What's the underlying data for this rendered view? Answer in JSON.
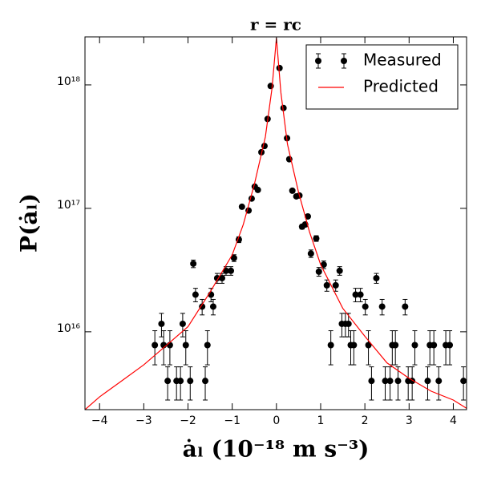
{
  "chart_data": {
    "type": "scatter",
    "title": "r = rc",
    "x_label": "ȧₗ (10⁻¹⁸ m s⁻³)",
    "y_label": "P(ȧₗ)",
    "xlim": [
      -4.33,
      4.3
    ],
    "ylim": [
      2340000000000000.0,
      2.45e+18
    ],
    "yscale": "log",
    "xticks": [
      {
        "value": -4,
        "label": "−4"
      },
      {
        "value": -3,
        "label": "−3"
      },
      {
        "value": -2,
        "label": "−2"
      },
      {
        "value": -1,
        "label": "−1"
      },
      0,
      1,
      2,
      3,
      4
    ],
    "yticks": [
      {
        "value": 1e+16,
        "label": "10¹⁶"
      },
      {
        "value": 1e+17,
        "label": "10¹⁷"
      },
      {
        "value": 1e+18,
        "label": "10¹⁸"
      }
    ],
    "legend": "upper right",
    "series": [
      {
        "name": "Measured",
        "type": "errorbar",
        "color": "#000000",
        "x": [
          -2.75,
          -2.6,
          -2.55,
          -2.46,
          -2.41,
          -2.26,
          -2.17,
          -2.12,
          -2.05,
          -1.95,
          -1.88,
          -1.83,
          -1.68,
          -1.61,
          -1.56,
          -1.48,
          -1.43,
          -1.34,
          -1.23,
          -1.14,
          -1.03,
          -0.96,
          -0.85,
          -0.78,
          -0.63,
          -0.56,
          -0.49,
          -0.42,
          -0.34,
          -0.27,
          -0.2,
          -0.13,
          0.07,
          0.16,
          0.24,
          0.29,
          0.36,
          0.45,
          0.52,
          0.58,
          0.65,
          0.71,
          0.78,
          0.9,
          0.96,
          1.07,
          1.14,
          1.23,
          1.34,
          1.43,
          1.48,
          1.56,
          1.63,
          1.68,
          1.75,
          1.79,
          1.9,
          2.01,
          2.08,
          2.15,
          2.26,
          2.39,
          2.46,
          2.57,
          2.62,
          2.69,
          2.75,
          2.91,
          2.98,
          3.07,
          3.13,
          3.42,
          3.47,
          3.56,
          3.67,
          3.83,
          3.92,
          4.23
        ],
        "values": [
          7800000000000000.0,
          1.16e+16,
          7800000000000000.0,
          4000000000000000.0,
          7800000000000000.0,
          4000000000000000.0,
          4000000000000000.0,
          1.16e+16,
          7800000000000000.0,
          4000000000000000.0,
          3.56e+16,
          2e+16,
          1.6e+16,
          4000000000000000.0,
          7800000000000000.0,
          2e+16,
          1.6e+16,
          2.72e+16,
          2.72e+16,
          3.12e+16,
          3.12e+16,
          3.96e+16,
          5.58e+16,
          1.03e+17,
          9.6e+16,
          1.2e+17,
          1.5e+17,
          1.41e+17,
          2.85e+17,
          3.2e+17,
          5.3e+17,
          9.8e+17,
          1.37e+18,
          6.5e+17,
          3.7e+17,
          2.5e+17,
          1.39e+17,
          1.25e+17,
          1.27e+17,
          7.1e+16,
          7.4e+16,
          8.6e+16,
          4.3e+16,
          5.7e+16,
          3.07e+16,
          3.5e+16,
          2.38e+16,
          7800000000000000.0,
          2.38e+16,
          3.12e+16,
          1.16e+16,
          1.16e+16,
          1.16e+16,
          7800000000000000.0,
          7800000000000000.0,
          2e+16,
          2e+16,
          1.6e+16,
          7800000000000000.0,
          4000000000000000.0,
          2.72e+16,
          1.6e+16,
          4000000000000000.0,
          4000000000000000.0,
          7800000000000000.0,
          7800000000000000.0,
          4000000000000000.0,
          1.6e+16,
          4000000000000000.0,
          4000000000000000.0,
          7800000000000000.0,
          4000000000000000.0,
          7800000000000000.0,
          7800000000000000.0,
          4000000000000000.0,
          7800000000000000.0,
          7800000000000000.0,
          4000000000000000.0
        ],
        "errors": [
          2400000000000000.0,
          2500000000000000.0,
          2400000000000000.0,
          1200000000000000.0,
          2400000000000000.0,
          1200000000000000.0,
          1200000000000000.0,
          2500000000000000.0,
          2400000000000000.0,
          1200000000000000.0,
          2500000000000000.0,
          2500000000000000.0,
          2300000000000000.0,
          1200000000000000.0,
          2400000000000000.0,
          2500000000000000.0,
          2300000000000000.0,
          2500000000000000.0,
          2500000000000000.0,
          2500000000000000.0,
          2500000000000000.0,
          2500000000000000.0,
          3000000000000000.0,
          3000000000000000.0,
          3000000000000000.0,
          3000000000000000.0,
          3000000000000000.0,
          3000000000000000.0,
          3000000000000000.0,
          3000000000000000.0,
          3000000000000000.0,
          3000000000000000.0,
          3000000000000000.0,
          3000000000000000.0,
          3000000000000000.0,
          3000000000000000.0,
          3000000000000000.0,
          3000000000000000.0,
          3000000000000000.0,
          3000000000000000.0,
          3000000000000000.0,
          3000000000000000.0,
          3000000000000000.0,
          3000000000000000.0,
          2500000000000000.0,
          2500000000000000.0,
          2500000000000000.0,
          2400000000000000.0,
          2500000000000000.0,
          2500000000000000.0,
          2500000000000000.0,
          2500000000000000.0,
          2500000000000000.0,
          2400000000000000.0,
          2400000000000000.0,
          2500000000000000.0,
          2500000000000000.0,
          2300000000000000.0,
          2400000000000000.0,
          1200000000000000.0,
          2500000000000000.0,
          2300000000000000.0,
          1200000000000000.0,
          1200000000000000.0,
          2400000000000000.0,
          2400000000000000.0,
          1200000000000000.0,
          2300000000000000.0,
          1200000000000000.0,
          1200000000000000.0,
          2400000000000000.0,
          1200000000000000.0,
          2400000000000000.0,
          2400000000000000.0,
          1200000000000000.0,
          2400000000000000.0,
          2400000000000000.0,
          1200000000000000.0
        ]
      },
      {
        "name": "Predicted",
        "type": "line",
        "color": "#ff0000",
        "x": [
          -4.33,
          -4,
          -3.5,
          -3,
          -2.5,
          -2,
          -1.5,
          -1,
          -0.75,
          -0.5,
          -0.25,
          -0.1,
          0,
          0.1,
          0.25,
          0.5,
          0.75,
          1,
          1.5,
          2,
          2.5,
          3,
          3.5,
          4,
          4.3
        ],
        "values": [
          2340000000000000.0,
          2970000000000000.0,
          4000000000000000.0,
          5400000000000000.0,
          7700000000000000.0,
          1.1e+16,
          2.1e+16,
          4.2e+16,
          7.4e+16,
          1.56e+17,
          3.8e+17,
          9.4e+17,
          2.4e+18,
          8.7e+17,
          3.3e+17,
          1.35e+17,
          6.4e+16,
          3.5e+16,
          1.55e+16,
          9200000000000000.0,
          5600000000000000.0,
          4200000000000000.0,
          3300000000000000.0,
          2800000000000000.0,
          2400000000000000.0
        ]
      }
    ]
  }
}
